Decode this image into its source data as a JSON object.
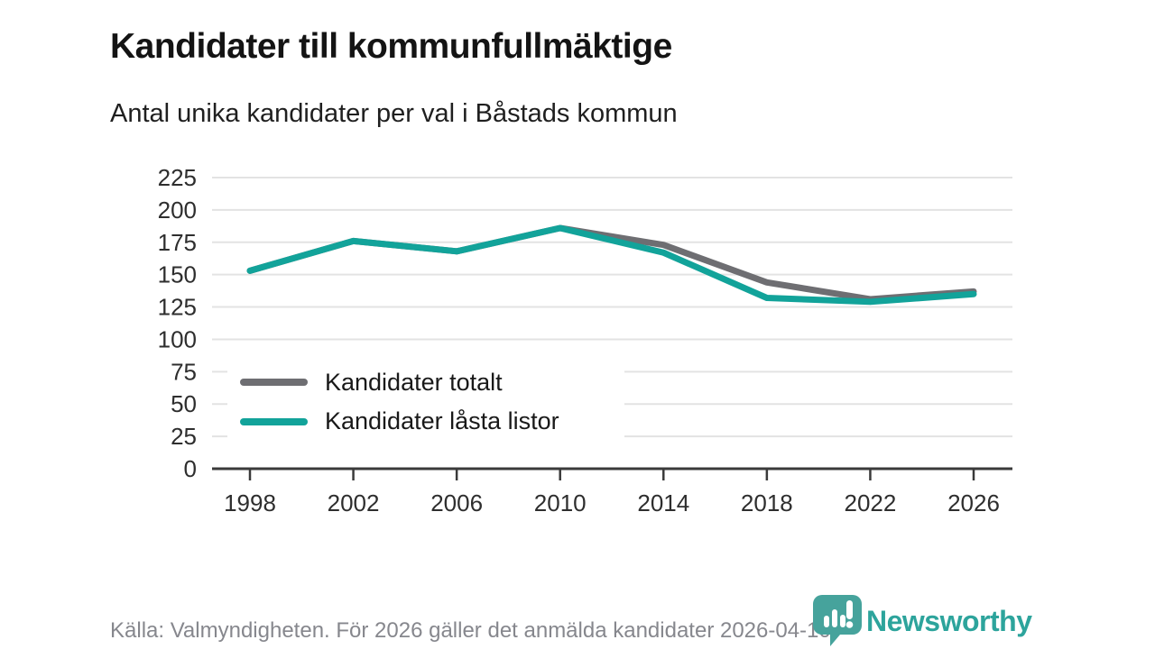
{
  "header": {
    "title": "Kandidater till kommunfullmäktige",
    "subtitle": "Antal unika kandidater per val i Båstads kommun"
  },
  "chart_data": {
    "type": "line",
    "title": "Kandidater till kommunfullmäktige",
    "subtitle": "Antal unika kandidater per val i Båstads kommun",
    "categories": [
      "1998",
      "2002",
      "2006",
      "2010",
      "2014",
      "2018",
      "2022",
      "2026"
    ],
    "series": [
      {
        "name": "Kandidater totalt",
        "color": "#6e6e72",
        "values": [
          153,
          176,
          168,
          186,
          173,
          144,
          131,
          137
        ]
      },
      {
        "name": "Kandidater låsta listor",
        "color": "#12a39a",
        "values": [
          153,
          176,
          168,
          186,
          167,
          132,
          129,
          135
        ]
      }
    ],
    "xlabel": "",
    "ylabel": "",
    "ylim": [
      0,
      225
    ],
    "yticks": [
      0,
      25,
      50,
      75,
      100,
      125,
      150,
      175,
      200,
      225
    ],
    "grid": "horizontal",
    "gridline_color": "#e3e3e3",
    "axis_color": "#3a3a3a",
    "legend_position": "inside-bottom-left"
  },
  "footer": {
    "source": "Källa: Valmyndigheten. För 2026 gäller det anmälda kandidater 2026-04-10."
  },
  "logo": {
    "text": "Newsworthy",
    "icon": "newsworthy-pin-barchart-icon",
    "color": "#2da49c"
  }
}
